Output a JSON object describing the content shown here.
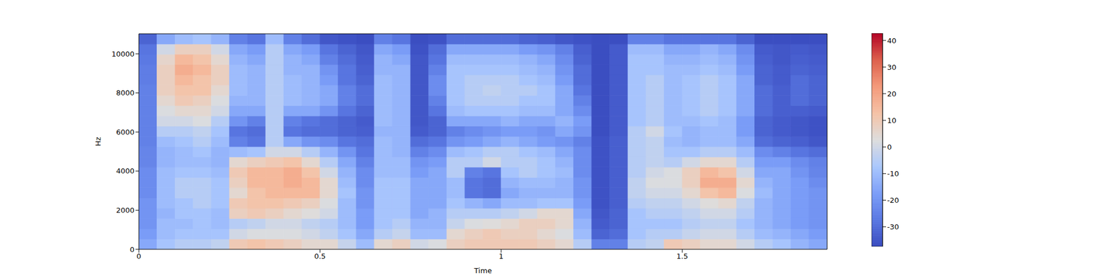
{
  "chart_data": {
    "type": "heatmap",
    "xlabel": "Time",
    "ylabel": "Hz",
    "xlim": [
      0,
      1.9
    ],
    "ylim": [
      0,
      11025
    ],
    "xticks": [
      0,
      0.5,
      1,
      1.5
    ],
    "yticks": [
      0,
      2000,
      4000,
      6000,
      8000,
      10000
    ],
    "x_bins": [
      0,
      0.05,
      0.1,
      0.15,
      0.2,
      0.25,
      0.3,
      0.35,
      0.4,
      0.45,
      0.5,
      0.55,
      0.6,
      0.65,
      0.7,
      0.75,
      0.8,
      0.85,
      0.9,
      0.95,
      1,
      1.05,
      1.1,
      1.15,
      1.2,
      1.25,
      1.3,
      1.35,
      1.4,
      1.45,
      1.5,
      1.55,
      1.6,
      1.65,
      1.7,
      1.75,
      1.8,
      1.85,
      1.9
    ],
    "y_bins": [
      0,
      525,
      1050,
      1575,
      2100,
      2625,
      3150,
      3675,
      4200,
      4725,
      5250,
      5775,
      6300,
      6825,
      7350,
      7875,
      8400,
      8925,
      9450,
      9975,
      10500,
      11025
    ],
    "cells": [
      [
        -15,
        -18,
        -20,
        -20,
        -20,
        -22,
        -22,
        -22,
        -24,
        -24,
        -25,
        -25,
        -25,
        -25,
        -25,
        -25,
        -26,
        -26,
        -27,
        -28,
        -32
      ],
      [
        -8,
        -10,
        -10,
        -12,
        -10,
        -10,
        -10,
        -10,
        -12,
        -12,
        -10,
        -5,
        0,
        2,
        5,
        8,
        8,
        8,
        6,
        0,
        -15
      ],
      [
        -5,
        -8,
        -10,
        -8,
        -8,
        -5,
        -5,
        -8,
        -10,
        -10,
        -8,
        -5,
        0,
        5,
        10,
        12,
        15,
        18,
        15,
        8,
        -10
      ],
      [
        -5,
        -8,
        -8,
        -8,
        -5,
        -5,
        -5,
        -8,
        -10,
        -8,
        -5,
        -3,
        2,
        5,
        8,
        12,
        12,
        15,
        12,
        8,
        -8
      ],
      [
        -3,
        -8,
        -10,
        -10,
        -8,
        -8,
        -8,
        -10,
        -12,
        -12,
        -10,
        -8,
        -5,
        0,
        2,
        5,
        8,
        8,
        5,
        0,
        -12
      ],
      [
        10,
        0,
        -5,
        8,
        10,
        5,
        8,
        10,
        5,
        -10,
        -25,
        -28,
        -20,
        -15,
        -12,
        -10,
        -10,
        -10,
        -12,
        -15,
        -25
      ],
      [
        12,
        2,
        -3,
        10,
        12,
        12,
        15,
        15,
        8,
        -8,
        -28,
        -30,
        -25,
        -15,
        -12,
        -12,
        -12,
        -12,
        -15,
        -18,
        -28
      ],
      [
        10,
        2,
        0,
        8,
        12,
        15,
        15,
        15,
        10,
        0,
        -5,
        -5,
        -5,
        -5,
        -5,
        -5,
        -5,
        -5,
        -5,
        -5,
        -10
      ],
      [
        8,
        2,
        0,
        5,
        10,
        15,
        18,
        18,
        12,
        0,
        -15,
        -28,
        -25,
        -15,
        -10,
        -10,
        -10,
        -12,
        -12,
        -15,
        -25
      ],
      [
        5,
        0,
        -3,
        3,
        8,
        15,
        15,
        12,
        5,
        -5,
        -20,
        -30,
        -28,
        -15,
        -12,
        -12,
        -12,
        -12,
        -15,
        -18,
        -30
      ],
      [
        5,
        -3,
        -5,
        0,
        2,
        5,
        5,
        0,
        -5,
        -12,
        -22,
        -30,
        -30,
        -20,
        -15,
        -15,
        -18,
        -20,
        -25,
        -28,
        -35
      ],
      [
        -2,
        -8,
        -10,
        -10,
        -10,
        -8,
        -10,
        -12,
        -15,
        -20,
        -28,
        -32,
        -32,
        -28,
        -25,
        -25,
        -28,
        -28,
        -30,
        -32,
        -36
      ],
      [
        -10,
        -15,
        -18,
        -18,
        -20,
        -20,
        -22,
        -22,
        -25,
        -28,
        -30,
        -33,
        -34,
        -32,
        -30,
        -30,
        -32,
        -33,
        -34,
        -35,
        -37
      ],
      [
        5,
        -5,
        -8,
        -8,
        -8,
        -8,
        -8,
        -10,
        -10,
        -10,
        -10,
        -12,
        -10,
        -10,
        -10,
        -10,
        -10,
        -12,
        -12,
        -15,
        -25
      ],
      [
        8,
        -2,
        -5,
        -8,
        -8,
        -8,
        -8,
        -10,
        -10,
        -12,
        -12,
        -12,
        -12,
        -12,
        -12,
        -12,
        -12,
        -12,
        -15,
        -18,
        -28
      ],
      [
        0,
        -10,
        -12,
        -15,
        -15,
        -15,
        -15,
        -18,
        -20,
        -25,
        -30,
        -34,
        -35,
        -35,
        -35,
        -35,
        -35,
        -35,
        -35,
        -36,
        -37
      ],
      [
        2,
        -10,
        -12,
        -12,
        -15,
        -15,
        -15,
        -15,
        -18,
        -22,
        -28,
        -32,
        -32,
        -28,
        -25,
        -22,
        -22,
        -25,
        -28,
        -30,
        -36
      ],
      [
        8,
        5,
        -2,
        -5,
        -8,
        -10,
        -10,
        -5,
        -5,
        -10,
        -20,
        -25,
        -15,
        -10,
        -8,
        -8,
        -8,
        -8,
        -10,
        -15,
        -30
      ],
      [
        10,
        8,
        2,
        -5,
        -12,
        -28,
        -28,
        -25,
        -5,
        -8,
        -18,
        -22,
        -15,
        -8,
        -5,
        -5,
        -5,
        -8,
        -10,
        -15,
        -30
      ],
      [
        10,
        10,
        3,
        -5,
        -15,
        -30,
        -30,
        -28,
        0,
        -5,
        -15,
        -20,
        -15,
        -8,
        -5,
        -3,
        -5,
        -8,
        -10,
        -15,
        -30
      ],
      [
        10,
        8,
        5,
        -3,
        -10,
        -15,
        -12,
        -8,
        -5,
        -5,
        -12,
        -18,
        -12,
        -8,
        -5,
        -5,
        -5,
        -8,
        -10,
        -15,
        -30
      ],
      [
        10,
        8,
        8,
        0,
        -10,
        -12,
        -10,
        -5,
        -5,
        -8,
        -15,
        -18,
        -15,
        -10,
        -8,
        -5,
        -8,
        -10,
        -12,
        -18,
        -32
      ],
      [
        8,
        5,
        8,
        5,
        -8,
        -12,
        -10,
        -8,
        -8,
        -10,
        -18,
        -20,
        -15,
        -10,
        -8,
        -8,
        -10,
        -12,
        -15,
        -20,
        -33
      ],
      [
        5,
        2,
        5,
        5,
        -8,
        -12,
        -12,
        -10,
        -12,
        -15,
        -20,
        -15,
        -12,
        -15,
        -15,
        -15,
        -18,
        -20,
        -22,
        -25,
        -35
      ],
      [
        -5,
        -10,
        -12,
        -15,
        -18,
        -20,
        -20,
        -22,
        -22,
        -22,
        -25,
        -20,
        -18,
        -22,
        -25,
        -28,
        -30,
        -30,
        -32,
        -33,
        -36
      ],
      [
        -25,
        -32,
        -34,
        -35,
        -36,
        -36,
        -36,
        -36,
        -36,
        -36,
        -36,
        -37,
        -37,
        -37,
        -37,
        -37,
        -37,
        -37,
        -37,
        -37,
        -37
      ],
      [
        -25,
        -30,
        -32,
        -32,
        -33,
        -33,
        -33,
        -33,
        -33,
        -33,
        -33,
        -34,
        -34,
        -34,
        -34,
        -34,
        -34,
        -34,
        -34,
        -34,
        -37
      ],
      [
        -5,
        -8,
        -8,
        -8,
        -5,
        -3,
        -3,
        -5,
        -5,
        -5,
        -5,
        -5,
        -8,
        -8,
        -8,
        -8,
        -8,
        -8,
        -8,
        -10,
        -25
      ],
      [
        -3,
        -5,
        -8,
        -5,
        -3,
        0,
        2,
        0,
        -3,
        -3,
        -3,
        0,
        -5,
        -5,
        -5,
        -5,
        -5,
        -8,
        -8,
        -10,
        -25
      ],
      [
        10,
        -5,
        -8,
        -5,
        -3,
        0,
        2,
        2,
        -5,
        -8,
        -10,
        -8,
        -10,
        -10,
        -10,
        -10,
        -10,
        -10,
        -12,
        -15,
        -28
      ],
      [
        8,
        -2,
        -5,
        -3,
        0,
        5,
        8,
        8,
        0,
        -8,
        -12,
        -12,
        -10,
        -8,
        -8,
        -8,
        -8,
        -10,
        -12,
        -15,
        -28
      ],
      [
        5,
        0,
        -3,
        0,
        3,
        12,
        18,
        15,
        5,
        -5,
        -10,
        -10,
        -8,
        -5,
        -5,
        -5,
        -5,
        -8,
        -10,
        -12,
        -28
      ],
      [
        5,
        0,
        -3,
        0,
        5,
        15,
        18,
        12,
        5,
        -5,
        -10,
        -10,
        -10,
        -8,
        -8,
        -8,
        -8,
        -10,
        -12,
        -15,
        -28
      ],
      [
        0,
        -5,
        -8,
        -5,
        -3,
        2,
        5,
        0,
        -5,
        -10,
        -15,
        -18,
        -18,
        -15,
        -15,
        -15,
        -15,
        -18,
        -20,
        -22,
        -32
      ],
      [
        -5,
        -10,
        -12,
        -12,
        -12,
        -10,
        -12,
        -15,
        -18,
        -22,
        -30,
        -32,
        -32,
        -30,
        -30,
        -30,
        -32,
        -32,
        -33,
        -34,
        -37
      ],
      [
        -8,
        -12,
        -15,
        -15,
        -15,
        -15,
        -15,
        -15,
        -18,
        -25,
        -32,
        -34,
        -34,
        -33,
        -33,
        -33,
        -34,
        -34,
        -35,
        -35,
        -37
      ],
      [
        -12,
        -15,
        -18,
        -18,
        -18,
        -18,
        -18,
        -20,
        -22,
        -28,
        -33,
        -35,
        -35,
        -33,
        -30,
        -30,
        -30,
        -32,
        -33,
        -34,
        -37
      ],
      [
        -15,
        -18,
        -20,
        -20,
        -20,
        -20,
        -22,
        -24,
        -25,
        -30,
        -35,
        -36,
        -36,
        -34,
        -32,
        -32,
        -32,
        -33,
        -34,
        -35,
        -37
      ]
    ],
    "colorbar": {
      "lim": [
        -37.4,
        42.7
      ],
      "ticks": [
        -30,
        -20,
        -10,
        0,
        10,
        20,
        30,
        40
      ]
    }
  }
}
